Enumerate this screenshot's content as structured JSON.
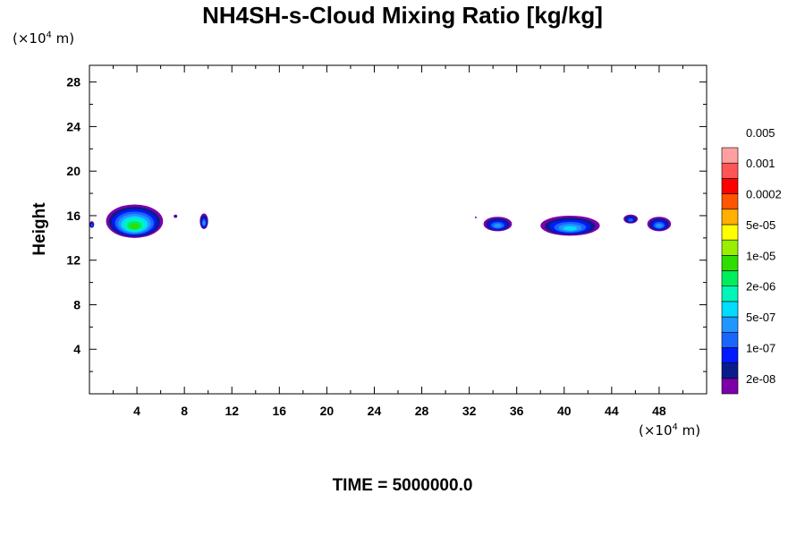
{
  "chart_data": {
    "type": "heatmap",
    "title": "NH4SH-s-Cloud Mixing Ratio [kg/kg]",
    "ylabel": "Height",
    "xlabel": "",
    "x_unit": {
      "prefix": "(×10",
      "exp": "4",
      "suffix": " m)"
    },
    "y_unit": {
      "prefix": "(×10",
      "exp": "4",
      "suffix": " m)"
    },
    "footer": "TIME = 5000000.0",
    "xlim": [
      0,
      52
    ],
    "ylim": [
      0,
      29.5
    ],
    "x_ticks": [
      4,
      8,
      12,
      16,
      20,
      24,
      28,
      32,
      36,
      40,
      44,
      48
    ],
    "y_ticks": [
      4,
      8,
      12,
      16,
      20,
      24,
      28
    ],
    "colorbar": {
      "colors": [
        "#7b00a8",
        "#0a1c8c",
        "#0019ff",
        "#1966ff",
        "#2296ff",
        "#00ddff",
        "#00f5b8",
        "#00ee5c",
        "#30dd00",
        "#9aee00",
        "#ffff00",
        "#ffb000",
        "#ff5500",
        "#ff0000",
        "#ff5555",
        "#ffa0a0"
      ],
      "labels": [
        "2e-08",
        "1e-07",
        "5e-07",
        "2e-06",
        "1e-05",
        "5e-05",
        "0.0002",
        "0.001",
        "0.005"
      ]
    },
    "regions": [
      {
        "x": [
          1.4,
          6.2
        ],
        "y": [
          14.0,
          17.0
        ],
        "max_level": 8
      },
      {
        "x": [
          0,
          0.4
        ],
        "y": [
          14.9,
          15.5
        ],
        "max_level": 3
      },
      {
        "x": [
          7.1,
          7.4
        ],
        "y": [
          15.8,
          16.1
        ],
        "max_level": 1
      },
      {
        "x": [
          9.3,
          10.0
        ],
        "y": [
          14.8,
          16.2
        ],
        "max_level": 4
      },
      {
        "x": [
          32.5,
          32.6
        ],
        "y": [
          15.8,
          15.9
        ],
        "max_level": 0
      },
      {
        "x": [
          33.2,
          35.6
        ],
        "y": [
          14.6,
          15.9
        ],
        "max_level": 4
      },
      {
        "x": [
          38.0,
          43.0
        ],
        "y": [
          14.2,
          16.0
        ],
        "max_level": 5
      },
      {
        "x": [
          45.0,
          46.2
        ],
        "y": [
          15.3,
          16.1
        ],
        "max_level": 3
      },
      {
        "x": [
          47.0,
          49.0
        ],
        "y": [
          14.6,
          15.9
        ],
        "max_level": 4
      }
    ]
  }
}
